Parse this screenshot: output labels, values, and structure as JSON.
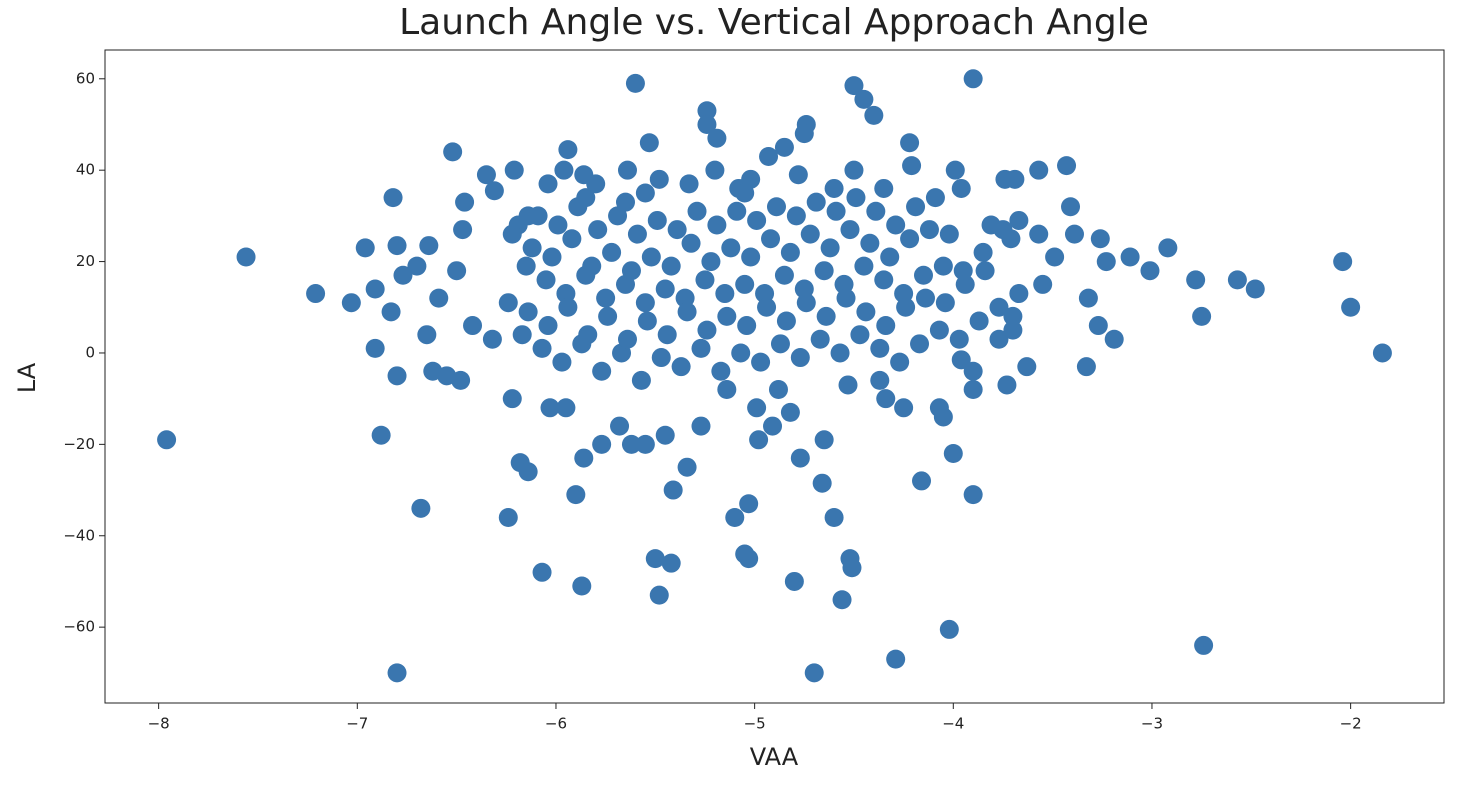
{
  "chart_data": {
    "type": "scatter",
    "title": "Launch Angle vs. Vertical Approach Angle",
    "x_label": "VAA",
    "y_label": "LA",
    "color": "#3a76af",
    "xlim": [
      -8.27,
      -1.53
    ],
    "ylim": [
      -76.6,
      66.3
    ],
    "xticks": [
      {
        "value": -8,
        "label": "−8"
      },
      {
        "value": -7,
        "label": "−7"
      },
      {
        "value": -6,
        "label": "−6"
      },
      {
        "value": -5,
        "label": "−5"
      },
      {
        "value": -4,
        "label": "−4"
      },
      {
        "value": -3,
        "label": "−3"
      },
      {
        "value": -2,
        "label": "−2"
      }
    ],
    "yticks": [
      {
        "value": -60,
        "label": "−60"
      },
      {
        "value": -40,
        "label": "−40"
      },
      {
        "value": -20,
        "label": "−20"
      },
      0,
      20,
      40,
      60
    ],
    "x": [
      -7.96,
      -7.56,
      -7.21,
      -7.03,
      -6.96,
      -6.91,
      -6.91,
      -6.88,
      -6.82,
      -6.8,
      -6.8,
      -6.8,
      -6.77,
      -6.83,
      -6.68,
      -6.64,
      -6.52,
      -6.48,
      -6.46,
      -6.35,
      -6.31,
      -6.21,
      -6.24,
      -6.07,
      -6.18,
      -6.14,
      -5.9,
      -5.87,
      -5.86,
      -5.6,
      -5.53,
      -5.5,
      -5.48,
      -5.42,
      -5.41,
      -5.34,
      -5.24,
      -5.24,
      -5.19,
      -5.2,
      -5.1,
      -5.03,
      -5.05,
      -5.03,
      -4.98,
      -4.91,
      -4.8,
      -4.77,
      -4.74,
      -4.75,
      -4.7,
      -4.66,
      -4.65,
      -4.6,
      -4.56,
      -4.52,
      -4.51,
      -4.5,
      -4.45,
      -4.4,
      -4.29,
      -4.22,
      -4.16,
      -4.02,
      -4.0,
      -3.9,
      -3.9,
      -3.73,
      -3.69,
      -3.57,
      -3.43,
      -3.41,
      -3.39,
      -3.33,
      -3.32,
      -3.26,
      -3.23,
      -3.27,
      -3.19,
      -3.11,
      -3.01,
      -2.92,
      -2.78,
      -2.57,
      -2.48,
      -2.74,
      -2.75,
      -2.04,
      -2.0,
      -1.84,
      -3.49,
      -3.55,
      -3.63,
      -3.67,
      -3.7,
      -3.9,
      -4.07,
      -4.05,
      -4.25,
      -4.34,
      -4.37,
      -4.53,
      -4.82,
      -4.88,
      -4.99,
      -5.14,
      -5.27,
      -5.45,
      -5.55,
      -5.62,
      -5.68,
      -5.77,
      -5.95,
      -6.03,
      -6.22,
      -6.32,
      -6.42,
      -6.55,
      -6.62,
      -6.65,
      -6.7,
      -6.59,
      -6.5,
      -6.47,
      -6.19,
      -6.14,
      -6.04,
      -5.94,
      -5.96,
      -5.86,
      -5.8,
      -5.64,
      -5.48,
      -5.33,
      -5.08,
      -5.02,
      -4.93,
      -4.85,
      -4.78,
      -4.6,
      -4.5,
      -4.35,
      -4.21,
      -3.99,
      -3.96,
      -3.81,
      -3.74,
      -3.67,
      -3.71,
      -3.57,
      -3.7,
      -3.77,
      -3.9,
      -3.96,
      -6.17,
      -6.24,
      -6.15,
      -6.22,
      -6.07,
      -6.14,
      -6.05,
      -6.12,
      -6.09,
      -5.97,
      -6.04,
      -5.95,
      -6.02,
      -5.99,
      -5.87,
      -5.94,
      -5.85,
      -5.92,
      -5.89,
      -5.77,
      -5.84,
      -5.75,
      -5.82,
      -5.79,
      -5.85,
      -5.67,
      -5.74,
      -5.65,
      -5.72,
      -5.69,
      -5.57,
      -5.64,
      -5.55,
      -5.62,
      -5.59,
      -5.65,
      -5.47,
      -5.54,
      -5.45,
      -5.52,
      -5.49,
      -5.55,
      -5.37,
      -5.44,
      -5.35,
      -5.42,
      -5.39,
      -5.27,
      -5.34,
      -5.25,
      -5.32,
      -5.29,
      -5.17,
      -5.24,
      -5.15,
      -5.22,
      -5.19,
      -5.07,
      -5.14,
      -5.05,
      -5.12,
      -5.09,
      -4.97,
      -5.04,
      -4.95,
      -5.02,
      -4.99,
      -5.05,
      -4.87,
      -4.94,
      -4.85,
      -4.92,
      -4.89,
      -4.77,
      -4.84,
      -4.75,
      -4.82,
      -4.79,
      -4.67,
      -4.74,
      -4.65,
      -4.72,
      -4.69,
      -4.57,
      -4.64,
      -4.55,
      -4.62,
      -4.59,
      -4.47,
      -4.54,
      -4.45,
      -4.52,
      -4.49,
      -4.37,
      -4.44,
      -4.35,
      -4.42,
      -4.39,
      -4.27,
      -4.34,
      -4.25,
      -4.32,
      -4.29,
      -4.17,
      -4.24,
      -4.15,
      -4.22,
      -4.19,
      -4.07,
      -4.14,
      -4.05,
      -4.12,
      -4.09,
      -3.97,
      -4.04,
      -3.95,
      -4.02,
      -3.87,
      -3.94,
      -3.85,
      -3.77,
      -3.84,
      -3.75
    ],
    "values": [
      -19,
      21,
      13,
      11,
      23,
      1,
      14,
      -18,
      34,
      -70,
      -5,
      23.5,
      17,
      9,
      -34,
      23.5,
      44,
      -6,
      33,
      39,
      35.5,
      40,
      -36,
      -48,
      -24,
      -26,
      -31,
      -51,
      -23,
      59,
      46,
      -45,
      -53,
      -46,
      -30,
      -25,
      53,
      50,
      47,
      40,
      -36,
      -33,
      -44,
      -45,
      -19,
      -16,
      -50,
      -23,
      50,
      48,
      -70,
      -28.5,
      -19,
      -36,
      -54,
      -45,
      -47,
      58.5,
      55.5,
      52,
      -67,
      46,
      -28,
      -60.5,
      -22,
      60,
      -31,
      -7,
      38,
      40,
      41,
      32,
      26,
      -3,
      12,
      25,
      20,
      6,
      3,
      21,
      18,
      23,
      16,
      16,
      14,
      -64,
      8,
      20,
      10,
      0,
      21,
      15,
      -3,
      13,
      8,
      -8,
      -12,
      -14,
      -12,
      -10,
      -6,
      -7,
      -13,
      -8,
      -12,
      -8,
      -16,
      -18,
      -20,
      -20,
      -16,
      -20,
      -12,
      -12,
      -10,
      3,
      6,
      -5,
      -4,
      4,
      19,
      12,
      18,
      27,
      28,
      30,
      37,
      44.5,
      40,
      39,
      37,
      40,
      38,
      37,
      36,
      38,
      43,
      45,
      39,
      36,
      40,
      36,
      41,
      40,
      36,
      28,
      38,
      29,
      25,
      26,
      5,
      3,
      -4,
      -1.5,
      4,
      11,
      19,
      26,
      1,
      9,
      16,
      23,
      30,
      -2,
      6,
      13,
      21,
      28,
      2,
      10,
      17,
      25,
      32,
      -4,
      4,
      12,
      19,
      27,
      34,
      0,
      8,
      15,
      22,
      30,
      -6,
      3,
      11,
      18,
      26,
      33,
      -1,
      7,
      14,
      21,
      29,
      35,
      -3,
      4,
      12,
      19,
      27,
      1,
      9,
      16,
      24,
      31,
      -4,
      5,
      13,
      20,
      28,
      0,
      8,
      15,
      23,
      31,
      -2,
      6,
      13,
      21,
      29,
      35,
      2,
      10,
      17,
      25,
      32,
      -1,
      7,
      14,
      22,
      30,
      3,
      11,
      18,
      26,
      33,
      0,
      8,
      15,
      23,
      31,
      4,
      12,
      19,
      27,
      34,
      1,
      9,
      16,
      24,
      31,
      -2,
      6,
      13,
      21,
      28,
      2,
      10,
      17,
      25,
      32,
      5,
      12,
      19,
      27,
      34,
      3,
      11,
      18,
      26,
      7,
      15,
      22,
      10,
      18,
      27
    ]
  }
}
